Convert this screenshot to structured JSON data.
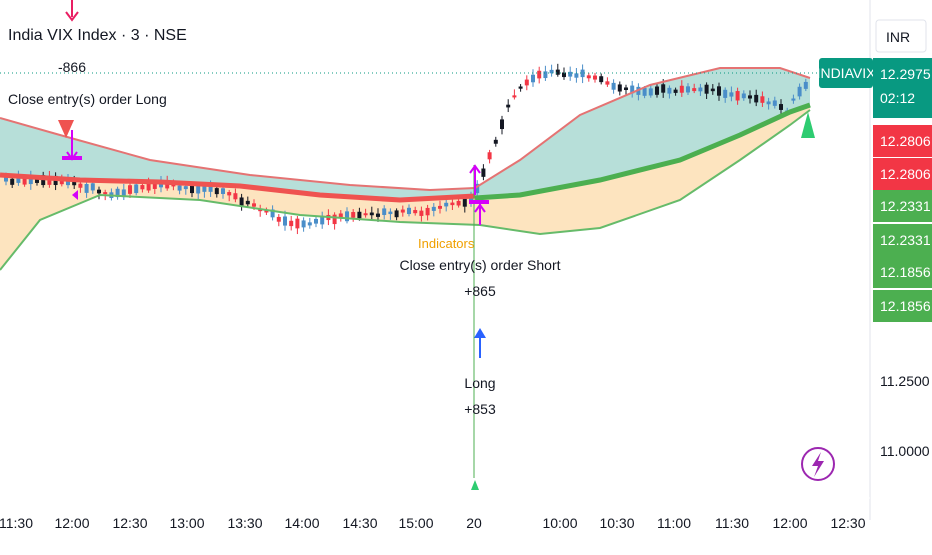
{
  "header": {
    "title": "India VIX Index · 3 · NSE",
    "currency": "INR"
  },
  "symbol_tag": "INDIAVIX",
  "price_tags": [
    {
      "lines": [
        "12.2975",
        "02:12"
      ],
      "color": "#089981"
    },
    {
      "lines": [
        "12.2806"
      ],
      "color": "#f23645"
    },
    {
      "lines": [
        "12.2806"
      ],
      "color": "#f23645"
    },
    {
      "lines": [
        "12.2331"
      ],
      "color": "#4caf50"
    },
    {
      "lines": [
        "12.2331"
      ],
      "color": "#4caf50"
    },
    {
      "lines": [
        "12.1856"
      ],
      "color": "#4caf50"
    },
    {
      "lines": [
        "12.1856"
      ],
      "color": "#4caf50"
    }
  ],
  "annotations": {
    "long_close_pnl": "-866",
    "long_close_label": "Close entry(s) order Long",
    "short_close_label": "Close entry(s) order Short",
    "short_close_pnl": "+865",
    "long_label": "Long",
    "long_pnl": "+853",
    "indicators_label": "Indicators"
  },
  "colors": {
    "up": "#089981",
    "down": "#f23645",
    "candle_up": "#4a8ec9",
    "candle_down": "#131722",
    "upper_band": "#e57373",
    "lower_band": "#66bb6a",
    "mid_red": "#ef5350",
    "mid_green": "#4caf50",
    "fill_teal": "#b7dfd9",
    "fill_orange": "#fde4bf",
    "long_arrow": "#2962ff",
    "short_marker": "#e91e63",
    "entry_marker": "#d500f9",
    "triangle_up": "#2ecc71",
    "triangle_down": "#ef5350",
    "current_line": "#089981"
  },
  "icons": [
    "lightning-icon",
    "arrow-up-icon",
    "arrow-down-icon",
    "triangle-up-icon",
    "triangle-down-icon"
  ],
  "chart_data": {
    "type": "candlestick",
    "title": "India VIX Index · 3 · NSE",
    "y_ticks": [
      "11.0000",
      "11.2500"
    ],
    "x_ticks": [
      "11:30",
      "12:00",
      "12:30",
      "13:00",
      "13:30",
      "14:00",
      "14:30",
      "15:00",
      "20",
      "10:00",
      "10:30",
      "11:00",
      "11:30",
      "12:00",
      "12:30"
    ],
    "last_price": 12.2975,
    "countdown": "02:12",
    "trades": [
      {
        "label": "Close entry(s) order Long",
        "pnl": "-866",
        "time": "12:00"
      },
      {
        "label": "Close entry(s) order Short",
        "pnl": "+865",
        "time": "20"
      },
      {
        "label": "Long",
        "pnl": "+853",
        "time": "20"
      }
    ]
  }
}
